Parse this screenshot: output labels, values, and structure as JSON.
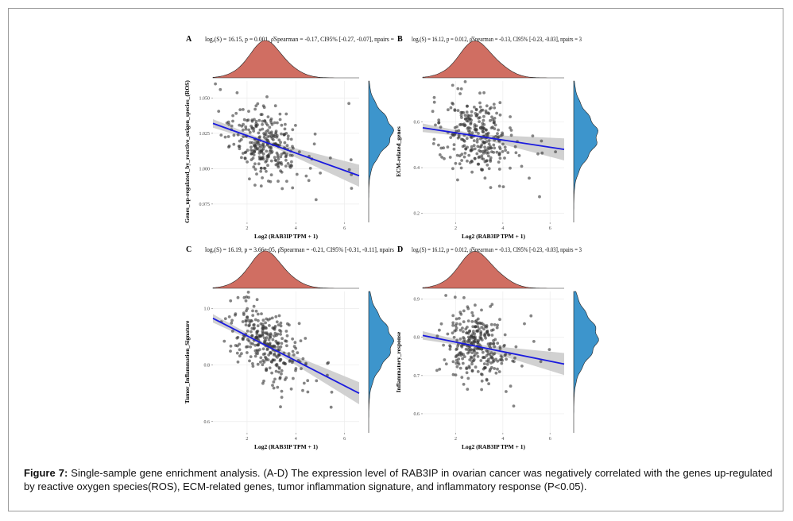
{
  "caption": {
    "label": "Figure 7:",
    "text": "Single-sample gene enrichment analysis. (A-D) The expression level of RAB3IP in ovarian cancer was negatively correlated with the genes up-regulated by reactive oxygen species(ROS), ECM-related genes, tumor inflammation signature, and inflammatory response (P<0.05)."
  },
  "colors": {
    "top_density": "#d06e62",
    "right_density": "#3d95cc",
    "fit_line": "#1a1adf",
    "ci_band": "#c9c9c9",
    "points": "#333333"
  },
  "chart_data": [
    {
      "id": "A",
      "type": "scatter",
      "stat_text": "logₑ(S) = 16.15, p = 0.001, ρ̂Spearman = -0.17, CI95% [-0.27, -0.07], npairs = ",
      "xlabel": "Log2 (RAB3IP TPM + 1)",
      "ylabel": "Genes_up-regulated_by_reactive_oxigen_species_(ROS)",
      "xlim": [
        0.6,
        6.6
      ],
      "ylim": [
        0.962,
        1.062
      ],
      "xticks": [
        2,
        4,
        6
      ],
      "xtick_labels": [
        "2",
        "4",
        "6"
      ],
      "yticks": [
        0.975,
        1.0,
        1.025,
        1.05
      ],
      "ytick_labels": [
        "0.975",
        "1.000",
        "1.025",
        "1.050"
      ],
      "fit": {
        "x": [
          0.6,
          6.6
        ],
        "y": [
          1.032,
          0.995
        ]
      },
      "top_density": {
        "mean": 2.8,
        "sd": 0.75
      },
      "right_density": {
        "mean": 1.026,
        "sd": 0.013
      },
      "seed": 11
    },
    {
      "id": "B",
      "type": "scatter",
      "stat_text": "logₑ(S) = 16.12, p = 0.012, ρ̂Spearman = -0.13, CI95% [-0.23, -0.03], npairs = 3",
      "xlabel": "Log2 (RAB3IP TPM + 1)",
      "ylabel": "ECM-related_genes",
      "xlim": [
        0.6,
        6.6
      ],
      "ylim": [
        0.16,
        0.78
      ],
      "xticks": [
        2,
        4,
        6
      ],
      "xtick_labels": [
        "2",
        "4",
        "6"
      ],
      "yticks": [
        0.2,
        0.4,
        0.6
      ],
      "ytick_labels": [
        "0.2",
        "0.4",
        "0.6"
      ],
      "fit": {
        "x": [
          0.6,
          6.6
        ],
        "y": [
          0.575,
          0.48
        ]
      },
      "top_density": {
        "mean": 2.9,
        "sd": 0.8
      },
      "right_density": {
        "mean": 0.54,
        "sd": 0.09
      },
      "seed": 23
    },
    {
      "id": "C",
      "type": "scatter",
      "stat_text": "logₑ(S) = 16.19, p = 3.66e-05, ρ̂Spearman = -0.21, CI95% [-0.31, -0.11], npairs",
      "xlabel": "Log2 (RAB3IP TPM + 1)",
      "ylabel": "Tumor_Inflammation_Signature",
      "xlim": [
        0.6,
        6.6
      ],
      "ylim": [
        0.56,
        1.06
      ],
      "xticks": [
        2,
        4,
        6
      ],
      "xtick_labels": [
        "2",
        "4",
        "6"
      ],
      "yticks": [
        0.6,
        0.8,
        1.0
      ],
      "ytick_labels": [
        "0.6",
        "0.8",
        "1.0"
      ],
      "fit": {
        "x": [
          0.6,
          6.6
        ],
        "y": [
          0.965,
          0.7
        ]
      },
      "top_density": {
        "mean": 2.8,
        "sd": 0.75
      },
      "right_density": {
        "mean": 0.88,
        "sd": 0.075
      },
      "seed": 37
    },
    {
      "id": "D",
      "type": "scatter",
      "stat_text": "logₑ(S) = 16.12, p = 0.012, ρ̂Spearman = -0.13, CI95% [-0.23, -0.03], npairs = 3",
      "xlabel": "Log2 (RAB3IP TPM + 1)",
      "ylabel": "Inflammatory_response",
      "xlim": [
        0.6,
        6.6
      ],
      "ylim": [
        0.55,
        0.92
      ],
      "xticks": [
        2,
        4,
        6
      ],
      "xtick_labels": [
        "2",
        "4",
        "6"
      ],
      "yticks": [
        0.6,
        0.7,
        0.8,
        0.9
      ],
      "ytick_labels": [
        "0.6",
        "0.7",
        "0.8",
        "0.9"
      ],
      "fit": {
        "x": [
          0.6,
          6.6
        ],
        "y": [
          0.805,
          0.73
        ]
      },
      "top_density": {
        "mean": 2.9,
        "sd": 0.8
      },
      "right_density": {
        "mean": 0.8,
        "sd": 0.055
      },
      "seed": 53
    }
  ]
}
